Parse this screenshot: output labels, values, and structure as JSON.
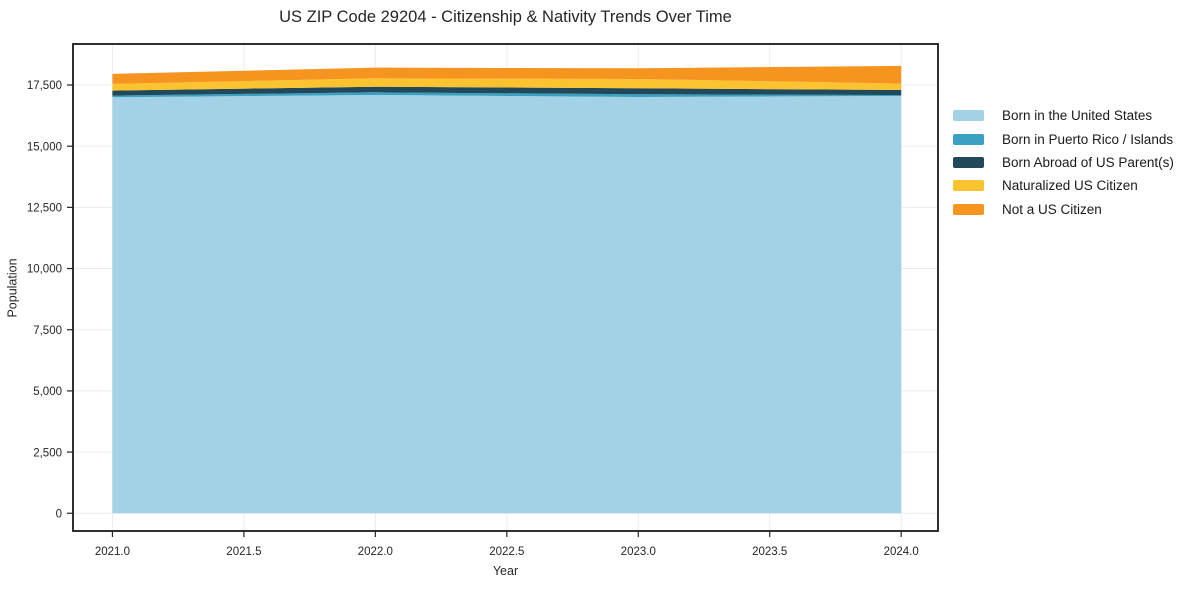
{
  "title": "US ZIP Code 29204 - Citizenship & Nativity Trends Over Time",
  "chart_data": {
    "type": "area",
    "stacked": true,
    "x": [
      2021,
      2022,
      2023,
      2024
    ],
    "series": [
      {
        "name": "Born in the United States",
        "color": "#A3D2E7",
        "values": [
          17000,
          17090,
          17010,
          17050
        ]
      },
      {
        "name": "Born in Puerto Rico / Islands",
        "color": "#3AA1C2",
        "values": [
          65,
          110,
          110,
          40
        ]
      },
      {
        "name": "Born Abroad of US Parent(s)",
        "color": "#21495A",
        "values": [
          205,
          230,
          245,
          205
        ]
      },
      {
        "name": "Naturalized US Citizen",
        "color": "#FBC32F",
        "values": [
          275,
          345,
          380,
          260
        ]
      },
      {
        "name": "Not a US Citizen",
        "color": "#F5941F",
        "values": [
          410,
          435,
          435,
          725
        ]
      }
    ],
    "xlabel": "Year",
    "ylabel": "Population",
    "xtick_values": [
      2021.0,
      2021.5,
      2022.0,
      2022.5,
      2023.0,
      2023.5,
      2024.0
    ],
    "xtick_labels": [
      "2021.0",
      "2021.5",
      "2022.0",
      "2022.5",
      "2023.0",
      "2023.5",
      "2024.0"
    ],
    "ytick_values": [
      0,
      2500,
      5000,
      7500,
      10000,
      12500,
      15000,
      17500
    ],
    "ytick_labels": [
      "0",
      "2,500",
      "5,000",
      "7,500",
      "10,000",
      "12,500",
      "15,000",
      "17,500"
    ],
    "xlim": [
      2020.85,
      2024.14
    ],
    "ylim": [
      -725,
      19175
    ],
    "grid": true,
    "legend_position": "right",
    "grid_color": "#ebebeb",
    "frame_color": "#1a1a1a",
    "tick_color": "#262626"
  }
}
